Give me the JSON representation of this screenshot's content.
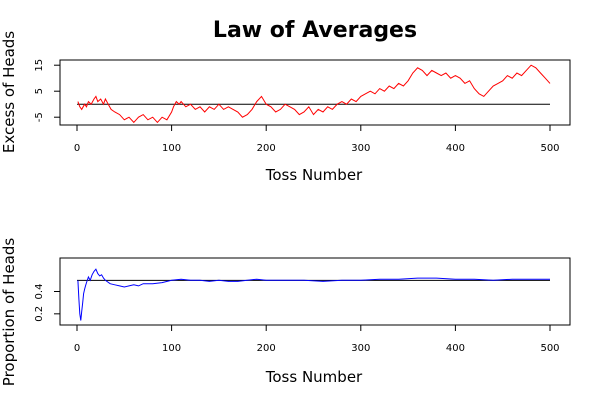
{
  "chart_data": {
    "title": "Law of Averages",
    "panels": [
      {
        "type": "line",
        "xlabel": "Toss Number",
        "ylabel": "Excess of Heads",
        "xlim": [
          0,
          500
        ],
        "ylim": [
          -8,
          17
        ],
        "xticks": [
          0,
          100,
          200,
          300,
          400,
          500
        ],
        "yticks": [
          -5,
          5,
          15
        ],
        "reference_line": 0,
        "series": [
          {
            "color": "#ff0000",
            "x": [
              1,
              3,
              5,
              8,
              10,
              12,
              15,
              18,
              20,
              22,
              25,
              28,
              30,
              33,
              36,
              40,
              45,
              50,
              55,
              60,
              65,
              70,
              75,
              80,
              85,
              90,
              95,
              100,
              102,
              105,
              108,
              110,
              115,
              120,
              125,
              130,
              135,
              140,
              145,
              150,
              155,
              160,
              165,
              170,
              175,
              180,
              185,
              190,
              195,
              200,
              205,
              210,
              215,
              220,
              225,
              230,
              235,
              240,
              245,
              250,
              255,
              260,
              265,
              270,
              275,
              280,
              285,
              290,
              295,
              300,
              305,
              310,
              315,
              320,
              325,
              330,
              335,
              340,
              345,
              350,
              355,
              360,
              365,
              370,
              375,
              380,
              385,
              390,
              395,
              400,
              405,
              410,
              415,
              420,
              425,
              430,
              435,
              440,
              445,
              450,
              455,
              460,
              465,
              470,
              475,
              480,
              485,
              490,
              495,
              500
            ],
            "y": [
              1,
              -1,
              -2,
              0,
              -1,
              1,
              0,
              2,
              3,
              1,
              2,
              0,
              2,
              0,
              -2,
              -3,
              -4,
              -6,
              -5,
              -7,
              -5,
              -4,
              -6,
              -5,
              -7,
              -5,
              -6,
              -3,
              -1,
              1,
              0,
              1,
              -1,
              0,
              -2,
              -1,
              -3,
              -1,
              -2,
              0,
              -2,
              -1,
              -2,
              -3,
              -5,
              -4,
              -2,
              1,
              3,
              0,
              -1,
              -3,
              -2,
              0,
              -1,
              -2,
              -4,
              -3,
              -1,
              -4,
              -2,
              -3,
              -1,
              -2,
              0,
              1,
              0,
              2,
              1,
              3,
              4,
              5,
              4,
              6,
              5,
              7,
              6,
              8,
              7,
              9,
              12,
              14,
              13,
              11,
              13,
              12,
              11,
              12,
              10,
              11,
              10,
              8,
              9,
              6,
              4,
              3,
              5,
              7,
              8,
              9,
              11,
              10,
              12,
              11,
              13,
              15,
              14,
              12,
              10,
              8
            ]
          }
        ]
      },
      {
        "type": "line",
        "xlabel": "Toss Number",
        "ylabel": "Proportion of Heads",
        "xlim": [
          0,
          500
        ],
        "ylim": [
          0.1,
          0.7
        ],
        "xticks": [
          0,
          100,
          200,
          300,
          400,
          500
        ],
        "yticks": [
          0.2,
          0.4
        ],
        "reference_line": 0.5,
        "series": [
          {
            "color": "#0000ff",
            "x": [
              1,
              2,
              3,
              4,
              5,
              6,
              7,
              8,
              9,
              10,
              12,
              14,
              16,
              18,
              20,
              22,
              24,
              26,
              28,
              30,
              35,
              40,
              45,
              50,
              55,
              60,
              65,
              70,
              80,
              90,
              100,
              110,
              120,
              130,
              140,
              150,
              160,
              170,
              180,
              190,
              200,
              220,
              240,
              260,
              280,
              300,
              320,
              340,
              360,
              380,
              400,
              420,
              440,
              460,
              480,
              500
            ],
            "y": [
              0.5,
              0.33,
              0.2,
              0.14,
              0.22,
              0.3,
              0.38,
              0.42,
              0.45,
              0.48,
              0.53,
              0.5,
              0.55,
              0.58,
              0.6,
              0.56,
              0.54,
              0.55,
              0.52,
              0.5,
              0.47,
              0.46,
              0.45,
              0.44,
              0.45,
              0.46,
              0.45,
              0.47,
              0.47,
              0.48,
              0.5,
              0.51,
              0.5,
              0.5,
              0.49,
              0.5,
              0.49,
              0.49,
              0.5,
              0.51,
              0.5,
              0.5,
              0.5,
              0.49,
              0.5,
              0.5,
              0.51,
              0.51,
              0.52,
              0.52,
              0.51,
              0.51,
              0.5,
              0.51,
              0.51,
              0.51
            ]
          }
        ]
      }
    ]
  }
}
